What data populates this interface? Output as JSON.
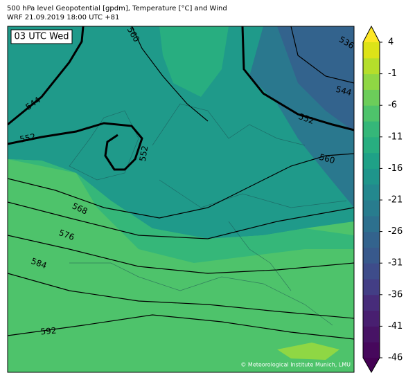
{
  "header": {
    "title": "500 hPa level Geopotential [gpdm], Temperature [°C] and Wind",
    "subtitle": "WRF 21.09.2019 18:00 UTC +81"
  },
  "map": {
    "time_label": "03 UTC Wed",
    "contour_labels": [
      "544",
      "552",
      "560",
      "552",
      "536",
      "544",
      "552",
      "560",
      "568",
      "576",
      "584",
      "592"
    ],
    "credit": "© Meteorological Institute Munich, LMU"
  },
  "colorbar": {
    "ticks": [
      4,
      -1,
      -6,
      -11,
      -16,
      -21,
      -26,
      -31,
      -36,
      -41,
      -46
    ],
    "colors": [
      "#46085c",
      "#471365",
      "#481f70",
      "#472c7a",
      "#433e85",
      "#3e4c8a",
      "#38598c",
      "#33638d",
      "#2d708e",
      "#287c8e",
      "#23888e",
      "#1f958b",
      "#1fa187",
      "#28ae80",
      "#35b779",
      "#4ec36b",
      "#6ccd5a",
      "#8fd744",
      "#b5de2b",
      "#dde318"
    ],
    "under_color": "#440154",
    "over_color": "#fde725"
  }
}
